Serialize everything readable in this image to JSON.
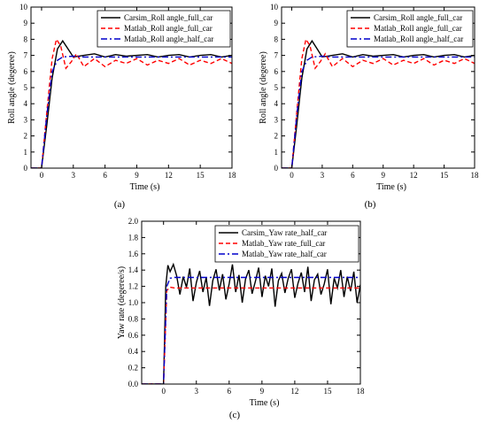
{
  "chart_data": [
    {
      "type": "line",
      "caption": "(a)",
      "xlabel": "Time (s)",
      "ylabel": "Roll angle (degeree)",
      "xlim": [
        -1,
        18
      ],
      "ylim": [
        0,
        10
      ],
      "xticks": [
        0,
        3,
        6,
        9,
        12,
        15,
        18
      ],
      "yticks": [
        0,
        1,
        2,
        3,
        4,
        5,
        6,
        7,
        8,
        9,
        10
      ],
      "legend_position": "top-right",
      "series": [
        {
          "name": "Carsim_Roll angle_full_car",
          "color": "#000000",
          "dash": "solid",
          "x": [
            -1,
            0,
            0.5,
            1,
            1.5,
            2,
            2.5,
            3,
            4,
            5,
            6,
            7,
            8,
            9,
            10,
            11,
            12,
            13,
            14,
            15,
            16,
            17,
            18
          ],
          "y": [
            0,
            0,
            2.7,
            5.6,
            7.4,
            7.9,
            7.4,
            6.9,
            7.0,
            7.1,
            6.9,
            7.05,
            6.95,
            7.0,
            7.05,
            6.9,
            7.0,
            7.05,
            6.9,
            7.0,
            7.05,
            6.9,
            7.0
          ]
        },
        {
          "name": "Matlab_Roll angle_full_car",
          "color": "#ff0000",
          "dash": "dash",
          "x": [
            -1,
            0,
            0.5,
            1,
            1.4,
            1.8,
            2.3,
            2.8,
            3.3,
            4,
            5,
            6,
            7,
            8,
            9,
            10,
            11,
            12,
            13,
            14,
            15,
            16,
            17,
            18
          ],
          "y": [
            0,
            0,
            3.5,
            6.8,
            8.0,
            7.6,
            6.2,
            6.6,
            7.1,
            6.3,
            6.8,
            6.3,
            6.7,
            6.5,
            6.8,
            6.4,
            6.7,
            6.5,
            6.8,
            6.4,
            6.7,
            6.5,
            6.8,
            6.5
          ]
        },
        {
          "name": "Matlab_Roll angle_half_car",
          "color": "#0000cc",
          "dash": "dashdot",
          "x": [
            -1,
            0,
            0.5,
            1,
            1.5,
            2,
            3,
            4,
            6,
            9,
            12,
            15,
            18
          ],
          "y": [
            0,
            0,
            3.3,
            6.0,
            6.7,
            6.9,
            6.95,
            6.9,
            6.9,
            6.9,
            6.9,
            6.9,
            6.9
          ]
        }
      ]
    },
    {
      "type": "line",
      "caption": "(b)",
      "xlabel": "Time (s)",
      "ylabel": "Roll angle (degeree)",
      "xlim": [
        -1,
        18
      ],
      "ylim": [
        0,
        10
      ],
      "xticks": [
        0,
        3,
        6,
        9,
        12,
        15,
        18
      ],
      "yticks": [
        0,
        1,
        2,
        3,
        4,
        5,
        6,
        7,
        8,
        9,
        10
      ],
      "legend_position": "top-right",
      "series": [
        {
          "name": "Carsim_Roll angle_full_car",
          "color": "#000000",
          "dash": "solid",
          "x": [
            -1,
            0,
            0.5,
            1,
            1.5,
            2,
            2.5,
            3,
            4,
            5,
            6,
            7,
            8,
            9,
            10,
            11,
            12,
            13,
            14,
            15,
            16,
            17,
            18
          ],
          "y": [
            0,
            0,
            2.7,
            5.6,
            7.4,
            7.9,
            7.4,
            6.9,
            7.0,
            7.1,
            6.9,
            7.05,
            6.95,
            7.0,
            7.05,
            6.9,
            7.0,
            7.05,
            6.9,
            7.0,
            7.05,
            6.9,
            7.0
          ]
        },
        {
          "name": "Matlab_Roll angle_full_car",
          "color": "#ff0000",
          "dash": "dash",
          "x": [
            -1,
            0,
            0.5,
            1,
            1.4,
            1.8,
            2.3,
            2.8,
            3.3,
            4,
            5,
            6,
            7,
            8,
            9,
            10,
            11,
            12,
            13,
            14,
            15,
            16,
            17,
            18
          ],
          "y": [
            0,
            0,
            3.5,
            6.8,
            8.0,
            7.6,
            6.2,
            6.6,
            7.1,
            6.3,
            6.8,
            6.3,
            6.7,
            6.5,
            6.8,
            6.4,
            6.7,
            6.5,
            6.8,
            6.4,
            6.7,
            6.5,
            6.8,
            6.5
          ]
        },
        {
          "name": "Matlab_Roll angle_half_car",
          "color": "#0000cc",
          "dash": "dashdot",
          "x": [
            -1,
            0,
            0.5,
            1,
            1.5,
            2,
            3,
            4,
            6,
            9,
            12,
            15,
            18
          ],
          "y": [
            0,
            0,
            3.3,
            6.0,
            6.7,
            6.9,
            6.95,
            6.9,
            6.9,
            6.9,
            6.9,
            6.9,
            6.9
          ]
        }
      ]
    },
    {
      "type": "line",
      "caption": "(c)",
      "xlabel": "Time (s)",
      "ylabel": "Yaw rate (degeree/s)",
      "xlim": [
        -2,
        18
      ],
      "ylim": [
        0,
        2.0
      ],
      "xticks": [
        0,
        3,
        6,
        9,
        12,
        15,
        18
      ],
      "yticks": [
        0.0,
        0.2,
        0.4,
        0.6,
        0.8,
        1.0,
        1.2,
        1.4,
        1.6,
        1.8,
        2.0
      ],
      "legend_position": "top-right",
      "series": [
        {
          "name": "Carsim_Yaw rate_half_car",
          "color": "#000000",
          "dash": "solid",
          "x": [
            -2,
            0,
            0.2,
            0.4,
            0.6,
            0.9,
            1.2,
            1.5,
            1.8,
            2.1,
            2.4,
            2.7,
            3.0,
            3.3,
            3.6,
            3.9,
            4.2,
            4.5,
            4.8,
            5.1,
            5.4,
            5.7,
            6.0,
            6.3,
            6.6,
            6.9,
            7.2,
            7.5,
            7.8,
            8.1,
            8.4,
            8.7,
            9.0,
            9.3,
            9.6,
            9.9,
            10.2,
            10.5,
            10.8,
            11.1,
            11.4,
            11.7,
            12.0,
            12.3,
            12.6,
            12.9,
            13.2,
            13.5,
            13.8,
            14.1,
            14.4,
            14.7,
            15.0,
            15.3,
            15.6,
            15.9,
            16.2,
            16.5,
            16.8,
            17.1,
            17.4,
            17.7,
            18.0
          ],
          "y": [
            0,
            0,
            1.2,
            1.46,
            1.38,
            1.47,
            1.33,
            1.1,
            1.32,
            1.19,
            1.42,
            1.02,
            1.25,
            1.39,
            1.13,
            1.31,
            0.96,
            1.27,
            1.41,
            1.15,
            1.35,
            1.04,
            1.23,
            1.47,
            1.13,
            1.34,
            1.0,
            1.29,
            1.4,
            1.11,
            1.26,
            1.43,
            1.07,
            1.33,
            1.2,
            1.42,
            0.95,
            1.27,
            1.36,
            1.12,
            1.3,
            1.41,
            1.06,
            1.24,
            1.37,
            1.13,
            1.44,
            1.02,
            1.28,
            1.35,
            1.1,
            1.23,
            1.41,
            0.98,
            1.3,
            1.18,
            1.4,
            1.07,
            1.32,
            1.14,
            1.38,
            1.0,
            1.22
          ]
        },
        {
          "name": "Matlab_Yaw rate_full_car",
          "color": "#ff0000",
          "dash": "dash",
          "x": [
            -2,
            0,
            0.3,
            0.6,
            1.0,
            2,
            4,
            6,
            8,
            10,
            12,
            14,
            16,
            18
          ],
          "y": [
            0,
            0,
            1.15,
            1.19,
            1.18,
            1.18,
            1.18,
            1.18,
            1.18,
            1.18,
            1.18,
            1.18,
            1.18,
            1.18
          ]
        },
        {
          "name": "Matlab_Yaw rate_half_car",
          "color": "#0000cc",
          "dash": "dashdot",
          "x": [
            -2,
            0,
            0.3,
            0.6,
            1.0,
            2,
            4,
            6,
            8,
            10,
            12,
            14,
            16,
            18
          ],
          "y": [
            0,
            0,
            1.2,
            1.3,
            1.31,
            1.31,
            1.31,
            1.31,
            1.31,
            1.31,
            1.31,
            1.31,
            1.31,
            1.31
          ]
        }
      ]
    }
  ]
}
